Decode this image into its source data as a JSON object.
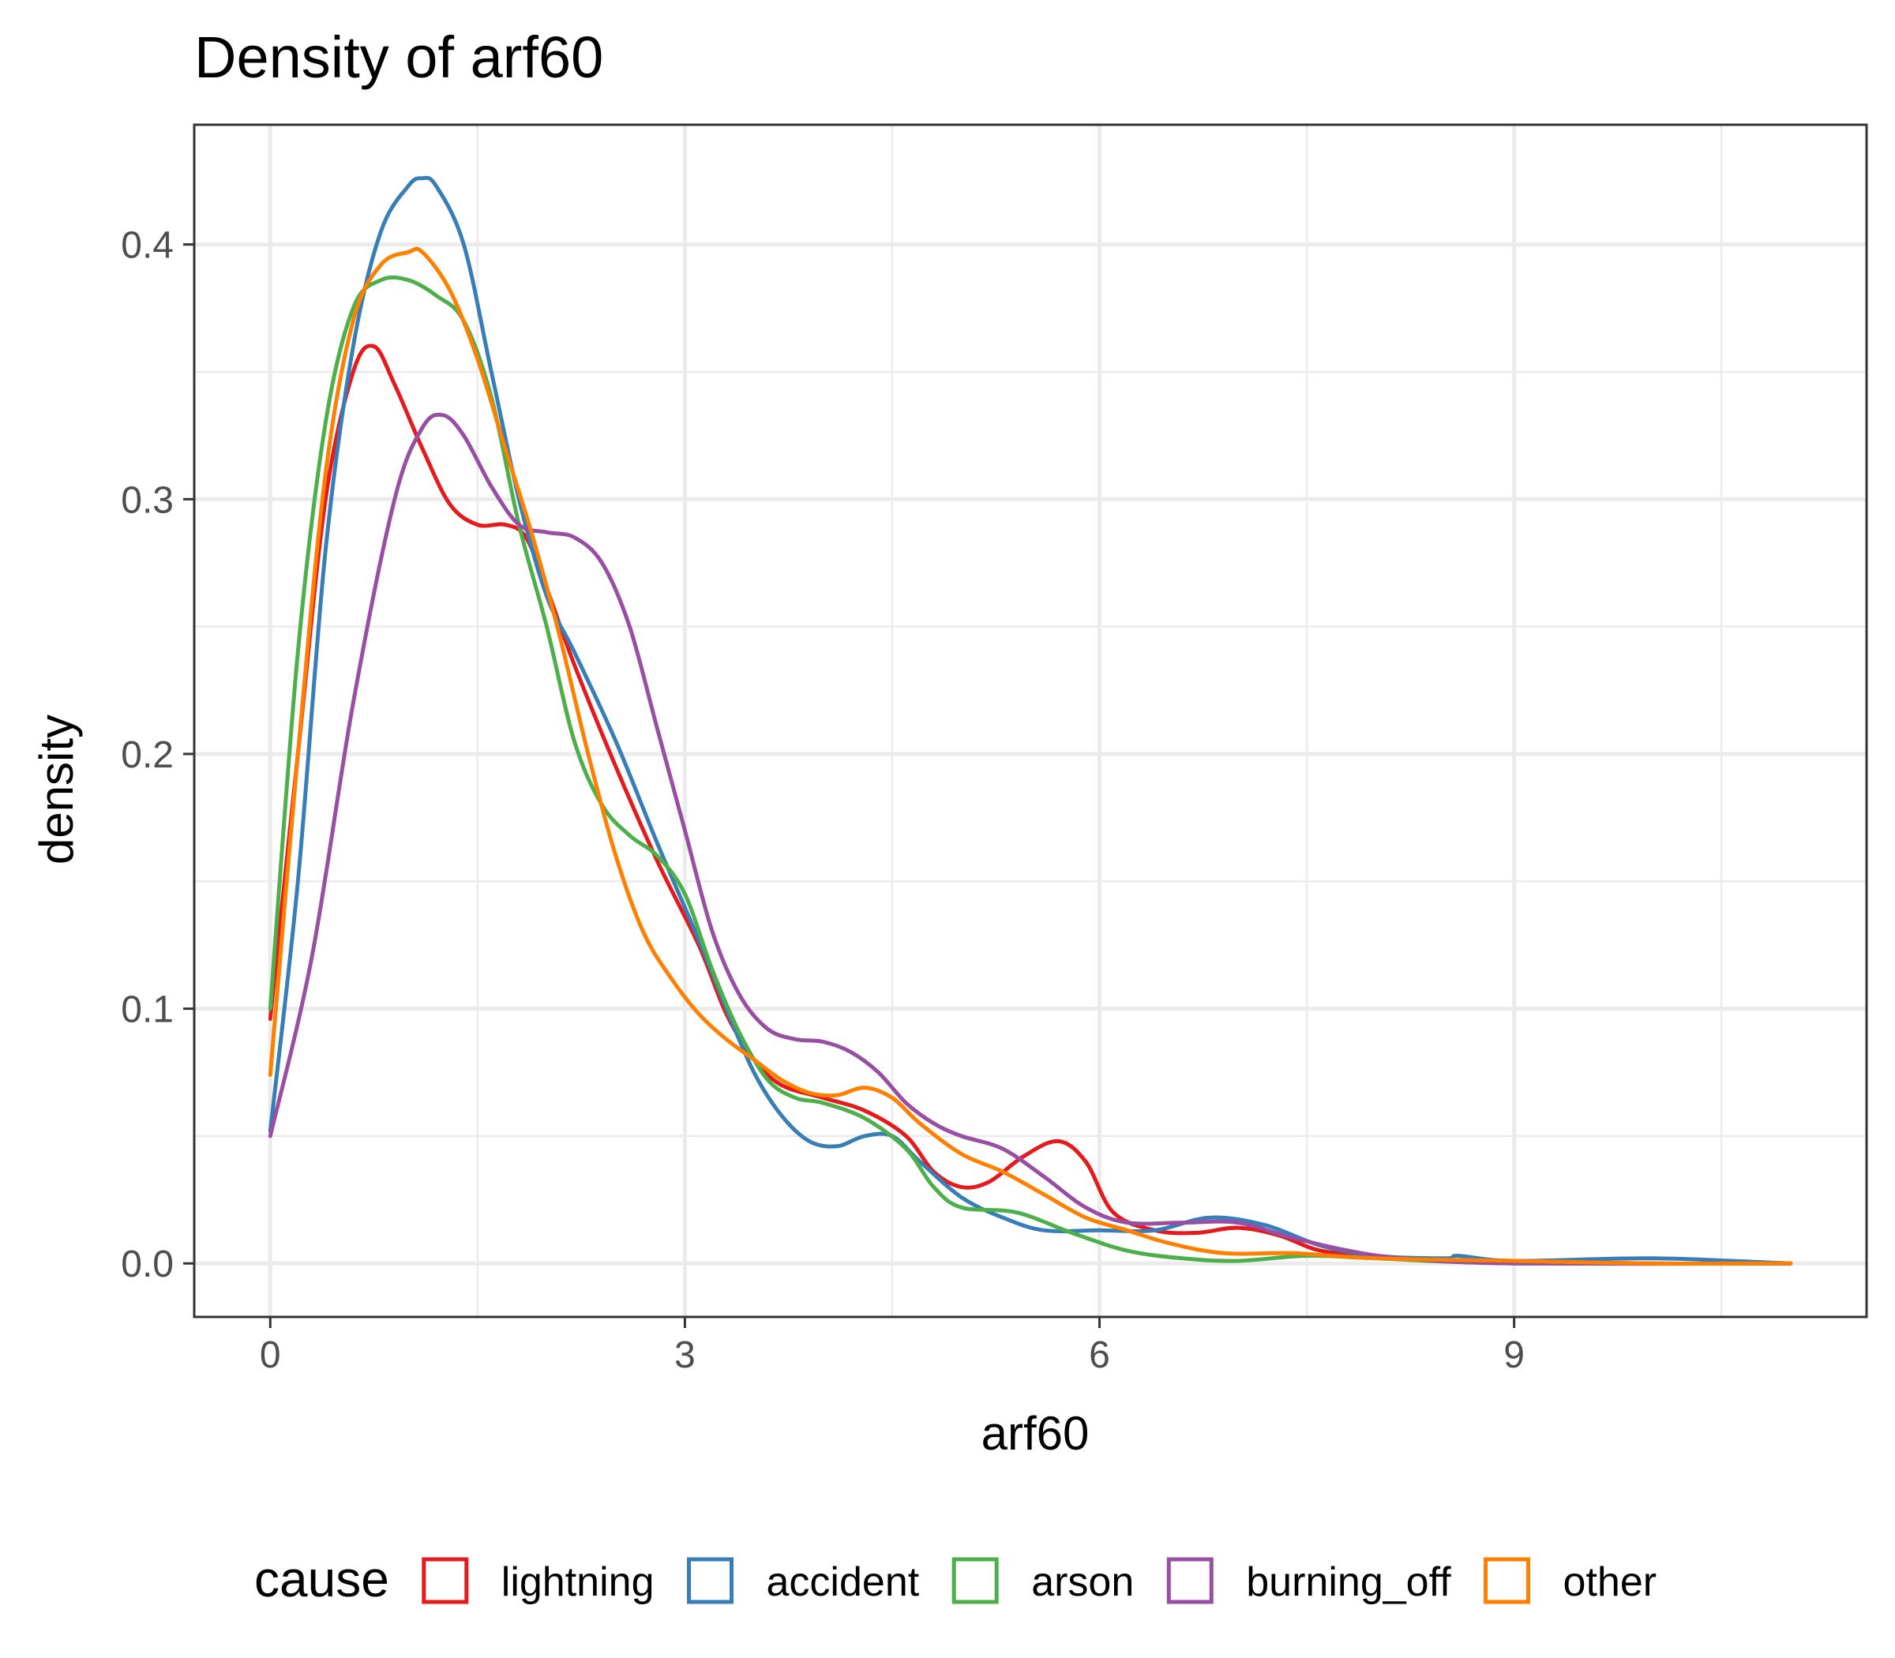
{
  "chart_data": {
    "type": "line",
    "title": "Density of arf60",
    "xlabel": "arf60",
    "ylabel": "density",
    "xlim": [
      -0.55,
      11.55
    ],
    "ylim": [
      -0.021,
      0.447
    ],
    "x_ticks": [
      0,
      3,
      6,
      9
    ],
    "x_tick_labels": [
      "0",
      "3",
      "6",
      "9"
    ],
    "y_ticks": [
      0.0,
      0.1,
      0.2,
      0.3,
      0.4
    ],
    "y_tick_labels": [
      "0.0",
      "0.1",
      "0.2",
      "0.3",
      "0.4"
    ],
    "grid": true,
    "legend": {
      "title": "cause",
      "placement": "bottom"
    },
    "series": [
      {
        "name": "lightning",
        "color": "#e41a1c",
        "points": [
          [
            0,
            0.096
          ],
          [
            0.2,
            0.2
          ],
          [
            0.4,
            0.3
          ],
          [
            0.6,
            0.35
          ],
          [
            0.75,
            0.36
          ],
          [
            0.9,
            0.345
          ],
          [
            1.1,
            0.32
          ],
          [
            1.3,
            0.298
          ],
          [
            1.5,
            0.29
          ],
          [
            1.7,
            0.29
          ],
          [
            1.85,
            0.285
          ],
          [
            2.0,
            0.265
          ],
          [
            2.2,
            0.235
          ],
          [
            2.5,
            0.195
          ],
          [
            2.8,
            0.158
          ],
          [
            3.1,
            0.125
          ],
          [
            3.3,
            0.098
          ],
          [
            3.5,
            0.08
          ],
          [
            3.7,
            0.07
          ],
          [
            4.0,
            0.065
          ],
          [
            4.3,
            0.06
          ],
          [
            4.6,
            0.05
          ],
          [
            4.8,
            0.036
          ],
          [
            5.0,
            0.03
          ],
          [
            5.2,
            0.032
          ],
          [
            5.45,
            0.042
          ],
          [
            5.7,
            0.048
          ],
          [
            5.9,
            0.04
          ],
          [
            6.1,
            0.02
          ],
          [
            6.4,
            0.013
          ],
          [
            6.7,
            0.012
          ],
          [
            7.0,
            0.014
          ],
          [
            7.3,
            0.011
          ],
          [
            7.6,
            0.005
          ],
          [
            8.0,
            0.003
          ],
          [
            8.5,
            0.001
          ],
          [
            9.0,
            0.001
          ],
          [
            10.0,
            0.0
          ],
          [
            11.0,
            0.0
          ]
        ]
      },
      {
        "name": "accident",
        "color": "#377eb8",
        "points": [
          [
            0,
            0.052
          ],
          [
            0.2,
            0.15
          ],
          [
            0.4,
            0.28
          ],
          [
            0.6,
            0.36
          ],
          [
            0.8,
            0.405
          ],
          [
            1.0,
            0.423
          ],
          [
            1.1,
            0.426
          ],
          [
            1.2,
            0.423
          ],
          [
            1.4,
            0.4
          ],
          [
            1.6,
            0.35
          ],
          [
            1.8,
            0.3
          ],
          [
            2.0,
            0.262
          ],
          [
            2.2,
            0.24
          ],
          [
            2.5,
            0.205
          ],
          [
            2.8,
            0.165
          ],
          [
            3.1,
            0.127
          ],
          [
            3.3,
            0.1
          ],
          [
            3.5,
            0.075
          ],
          [
            3.7,
            0.058
          ],
          [
            3.9,
            0.048
          ],
          [
            4.1,
            0.046
          ],
          [
            4.3,
            0.05
          ],
          [
            4.5,
            0.05
          ],
          [
            4.7,
            0.04
          ],
          [
            5.0,
            0.026
          ],
          [
            5.3,
            0.018
          ],
          [
            5.6,
            0.013
          ],
          [
            6.0,
            0.013
          ],
          [
            6.4,
            0.013
          ],
          [
            6.8,
            0.018
          ],
          [
            7.2,
            0.015
          ],
          [
            7.6,
            0.007
          ],
          [
            8.0,
            0.003
          ],
          [
            8.5,
            0.002
          ],
          [
            8.6,
            0.003
          ],
          [
            9.0,
            0.001
          ],
          [
            10.0,
            0.002
          ],
          [
            11.0,
            0.0
          ]
        ]
      },
      {
        "name": "arson",
        "color": "#4daf4a",
        "points": [
          [
            0,
            0.1
          ],
          [
            0.2,
            0.24
          ],
          [
            0.4,
            0.33
          ],
          [
            0.6,
            0.375
          ],
          [
            0.8,
            0.386
          ],
          [
            1.0,
            0.386
          ],
          [
            1.2,
            0.38
          ],
          [
            1.4,
            0.37
          ],
          [
            1.6,
            0.34
          ],
          [
            1.8,
            0.29
          ],
          [
            2.0,
            0.25
          ],
          [
            2.2,
            0.205
          ],
          [
            2.4,
            0.18
          ],
          [
            2.6,
            0.168
          ],
          [
            2.8,
            0.16
          ],
          [
            3.0,
            0.145
          ],
          [
            3.2,
            0.115
          ],
          [
            3.4,
            0.09
          ],
          [
            3.6,
            0.072
          ],
          [
            3.8,
            0.065
          ],
          [
            4.0,
            0.063
          ],
          [
            4.3,
            0.057
          ],
          [
            4.6,
            0.045
          ],
          [
            4.8,
            0.03
          ],
          [
            5.0,
            0.022
          ],
          [
            5.4,
            0.02
          ],
          [
            5.8,
            0.012
          ],
          [
            6.2,
            0.005
          ],
          [
            6.6,
            0.002
          ],
          [
            7.0,
            0.001
          ],
          [
            7.5,
            0.003
          ],
          [
            8.0,
            0.002
          ],
          [
            9.0,
            0.0
          ],
          [
            11.0,
            0.0
          ]
        ]
      },
      {
        "name": "burning_off",
        "color": "#984ea3",
        "points": [
          [
            0,
            0.05
          ],
          [
            0.3,
            0.12
          ],
          [
            0.6,
            0.22
          ],
          [
            0.9,
            0.3
          ],
          [
            1.1,
            0.328
          ],
          [
            1.25,
            0.333
          ],
          [
            1.4,
            0.325
          ],
          [
            1.6,
            0.305
          ],
          [
            1.8,
            0.29
          ],
          [
            2.0,
            0.287
          ],
          [
            2.2,
            0.285
          ],
          [
            2.4,
            0.275
          ],
          [
            2.6,
            0.25
          ],
          [
            2.8,
            0.21
          ],
          [
            3.0,
            0.17
          ],
          [
            3.2,
            0.13
          ],
          [
            3.4,
            0.105
          ],
          [
            3.6,
            0.092
          ],
          [
            3.8,
            0.088
          ],
          [
            4.0,
            0.087
          ],
          [
            4.2,
            0.083
          ],
          [
            4.4,
            0.075
          ],
          [
            4.6,
            0.063
          ],
          [
            4.8,
            0.055
          ],
          [
            5.0,
            0.05
          ],
          [
            5.3,
            0.045
          ],
          [
            5.6,
            0.034
          ],
          [
            5.9,
            0.022
          ],
          [
            6.2,
            0.016
          ],
          [
            6.6,
            0.016
          ],
          [
            7.0,
            0.016
          ],
          [
            7.4,
            0.01
          ],
          [
            7.8,
            0.005
          ],
          [
            8.2,
            0.002
          ],
          [
            9.0,
            0.0
          ],
          [
            11.0,
            0.0
          ]
        ]
      },
      {
        "name": "other",
        "color": "#ff7f00",
        "points": [
          [
            0,
            0.074
          ],
          [
            0.2,
            0.2
          ],
          [
            0.4,
            0.31
          ],
          [
            0.6,
            0.37
          ],
          [
            0.8,
            0.392
          ],
          [
            1.0,
            0.397
          ],
          [
            1.1,
            0.397
          ],
          [
            1.3,
            0.382
          ],
          [
            1.5,
            0.355
          ],
          [
            1.7,
            0.32
          ],
          [
            1.9,
            0.285
          ],
          [
            2.1,
            0.245
          ],
          [
            2.3,
            0.2
          ],
          [
            2.5,
            0.16
          ],
          [
            2.7,
            0.13
          ],
          [
            2.9,
            0.112
          ],
          [
            3.1,
            0.098
          ],
          [
            3.3,
            0.088
          ],
          [
            3.5,
            0.08
          ],
          [
            3.7,
            0.072
          ],
          [
            3.9,
            0.067
          ],
          [
            4.1,
            0.066
          ],
          [
            4.3,
            0.069
          ],
          [
            4.5,
            0.065
          ],
          [
            4.7,
            0.055
          ],
          [
            5.0,
            0.043
          ],
          [
            5.3,
            0.036
          ],
          [
            5.6,
            0.027
          ],
          [
            5.9,
            0.018
          ],
          [
            6.2,
            0.013
          ],
          [
            6.5,
            0.008
          ],
          [
            6.9,
            0.004
          ],
          [
            7.4,
            0.004
          ],
          [
            8.0,
            0.002
          ],
          [
            9.0,
            0.001
          ],
          [
            10.0,
            0.0
          ],
          [
            11.0,
            0.0
          ]
        ]
      }
    ]
  }
}
